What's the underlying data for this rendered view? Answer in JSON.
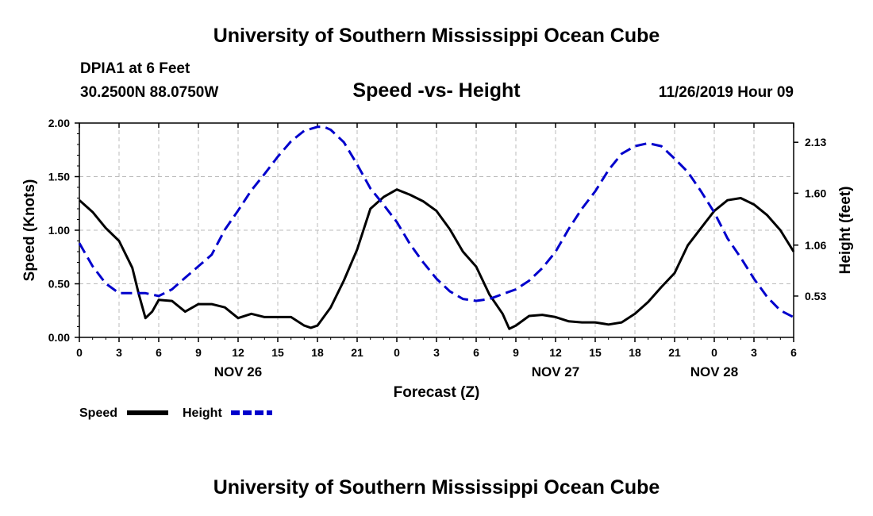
{
  "header": {
    "title": "University of Southern Mississippi Ocean Cube",
    "station": "DPIA1 at 6 Feet",
    "coords": "30.2500N 88.0750W",
    "plot_title": "Speed -vs- Height",
    "datetime": "11/26/2019 Hour 09"
  },
  "footer": {
    "title": "University of Southern Mississippi Ocean Cube"
  },
  "colors": {
    "speed": "#000000",
    "height": "#0000cc",
    "grid": "#bbbbbb"
  },
  "chart_data": {
    "type": "line",
    "title": "Speed -vs- Height",
    "xlabel": "Forecast (Z)",
    "ylabel": "Speed (Knots)",
    "y2label": "Height (feet)",
    "x_range_hours": [
      0,
      54
    ],
    "ylim": [
      0,
      2.0
    ],
    "y2lim": [
      0.1,
      2.33
    ],
    "y_ticks": [
      "0.00",
      "0.50",
      "1.00",
      "1.50",
      "2.00"
    ],
    "y_tick_values": [
      0,
      0.5,
      1.0,
      1.5,
      2.0
    ],
    "y2_ticks": [
      "0.53",
      "1.06",
      "1.60",
      "2.13"
    ],
    "y2_tick_values": [
      0.53,
      1.06,
      1.6,
      2.13
    ],
    "x_ticks": [
      "0",
      "3",
      "6",
      "9",
      "12",
      "15",
      "18",
      "21",
      "0",
      "3",
      "6",
      "9",
      "12",
      "15",
      "18",
      "21",
      "0",
      "3",
      "6"
    ],
    "date_labels": [
      {
        "text": "NOV 26",
        "hour": 12
      },
      {
        "text": "NOV 27",
        "hour": 36
      },
      {
        "text": "NOV 28",
        "hour": 48
      }
    ],
    "legend": [
      "Speed",
      "Height"
    ],
    "series": [
      {
        "name": "Speed",
        "axis": "left",
        "style": "solid",
        "x": [
          0,
          1,
          2,
          3,
          4,
          4.5,
          5,
          5.5,
          6,
          7,
          8,
          9,
          10,
          11,
          12,
          13,
          14,
          15,
          16,
          17,
          17.5,
          18,
          19,
          20,
          21,
          22,
          23,
          24,
          25,
          26,
          27,
          28,
          29,
          30,
          31,
          32,
          32.5,
          33,
          34,
          35,
          36,
          37,
          38,
          39,
          40,
          41,
          42,
          43,
          44,
          45,
          46,
          47,
          48,
          49,
          50,
          51,
          52,
          53,
          54
        ],
        "values": [
          1.28,
          1.17,
          1.02,
          0.9,
          0.65,
          0.4,
          0.18,
          0.24,
          0.35,
          0.34,
          0.24,
          0.31,
          0.31,
          0.28,
          0.18,
          0.22,
          0.19,
          0.19,
          0.19,
          0.11,
          0.09,
          0.11,
          0.28,
          0.53,
          0.82,
          1.2,
          1.31,
          1.38,
          1.33,
          1.27,
          1.18,
          1.01,
          0.8,
          0.66,
          0.4,
          0.22,
          0.08,
          0.11,
          0.2,
          0.21,
          0.19,
          0.15,
          0.14,
          0.14,
          0.12,
          0.14,
          0.22,
          0.33,
          0.47,
          0.6,
          0.86,
          1.02,
          1.18,
          1.28,
          1.3,
          1.24,
          1.14,
          1.0,
          0.8
        ]
      },
      {
        "name": "Height",
        "axis": "right",
        "style": "dashed",
        "x": [
          0,
          1,
          2,
          3,
          4,
          5,
          6,
          7,
          8,
          9,
          10,
          11,
          12,
          13,
          14,
          15,
          16,
          17,
          18,
          18.5,
          19,
          20,
          21,
          22,
          23,
          24,
          25,
          26,
          27,
          28,
          29,
          30,
          31,
          32,
          33,
          34,
          35,
          36,
          37,
          38,
          39,
          40,
          41,
          42,
          43,
          44,
          45,
          46,
          47,
          48,
          49,
          50,
          51,
          52,
          53,
          54
        ],
        "values": [
          1.08,
          0.84,
          0.66,
          0.56,
          0.56,
          0.56,
          0.53,
          0.6,
          0.72,
          0.84,
          0.96,
          1.22,
          1.42,
          1.63,
          1.8,
          1.98,
          2.14,
          2.25,
          2.29,
          2.29,
          2.26,
          2.13,
          1.9,
          1.65,
          1.48,
          1.3,
          1.07,
          0.88,
          0.71,
          0.58,
          0.5,
          0.48,
          0.5,
          0.55,
          0.6,
          0.69,
          0.82,
          0.99,
          1.23,
          1.44,
          1.62,
          1.84,
          2.01,
          2.09,
          2.12,
          2.09,
          1.96,
          1.82,
          1.62,
          1.4,
          1.13,
          0.93,
          0.71,
          0.52,
          0.38,
          0.31
        ]
      }
    ]
  }
}
